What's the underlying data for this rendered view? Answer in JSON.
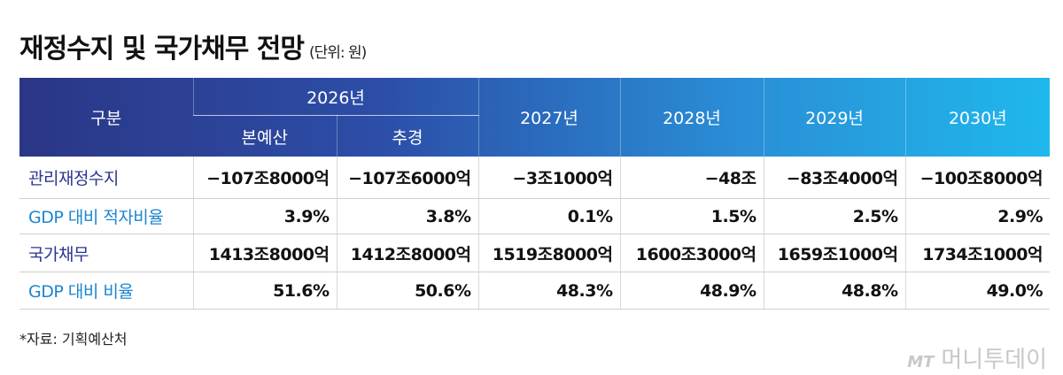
{
  "title": "재정수지 및 국가채무 전망",
  "unit": "(단위: 원)",
  "table": {
    "header": {
      "label": "구분",
      "group": "2026년",
      "sub": [
        "본예산",
        "추경"
      ],
      "years": [
        "2027년",
        "2028년",
        "2029년",
        "2030년"
      ]
    },
    "rows": [
      [
        "관리재정수지",
        "−107조8000억",
        "−107조6000억",
        "−3조1000억",
        "−48조",
        "−83조4000억",
        "−100조8000억"
      ],
      [
        "GDP 대비 적자비율",
        "3.9%",
        "3.8%",
        "0.1%",
        "1.5%",
        "2.5%",
        "2.9%"
      ],
      [
        "국가채무",
        "1413조8000억",
        "1412조8000억",
        "1519조8000억",
        "1600조3000억",
        "1659조1000억",
        "1734조1000억"
      ],
      [
        "GDP 대비 비율",
        "51.6%",
        "50.6%",
        "48.3%",
        "48.9%",
        "48.8%",
        "49.0%"
      ]
    ]
  },
  "source": "*자료: 기획예산처",
  "watermark": {
    "logo": "MT",
    "name": "머니투데이"
  }
}
